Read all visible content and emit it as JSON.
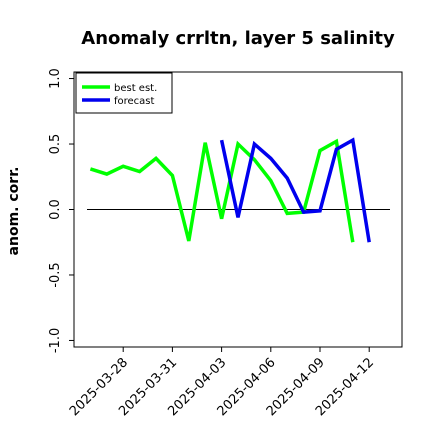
{
  "chart_data": {
    "type": "line",
    "title": "Anomaly crrltn, layer 5 salinity",
    "xlabel": "",
    "ylabel": "anom. corr.",
    "ylim": [
      -1.05,
      1.05
    ],
    "xlim": [
      "2025-03-25",
      "2025-04-14"
    ],
    "yticks": [
      "-1.0",
      "-0.5",
      "0.0",
      "0.5",
      "1.0"
    ],
    "xticks": [
      "2025-03-28",
      "2025-03-31",
      "2025-04-03",
      "2025-04-06",
      "2025-04-09",
      "2025-04-12"
    ],
    "highlight_tick": "2025-04-03",
    "highlight_color": "#228b22",
    "zero_line": true,
    "grid": false,
    "legend_position": "top-left",
    "series": [
      {
        "name": "best est.",
        "color": "#00ff00",
        "x": [
          "2025-03-26",
          "2025-03-27",
          "2025-03-28",
          "2025-03-29",
          "2025-03-30",
          "2025-03-31",
          "2025-04-01",
          "2025-04-02",
          "2025-04-03",
          "2025-04-04",
          "2025-04-05",
          "2025-04-06",
          "2025-04-07",
          "2025-04-08",
          "2025-04-09",
          "2025-04-10",
          "2025-04-11",
          "2025-04-12"
        ],
        "y": [
          0.31,
          0.27,
          0.33,
          0.29,
          0.39,
          0.26,
          -0.24,
          0.51,
          -0.07,
          0.5,
          0.38,
          0.22,
          -0.03,
          -0.02,
          0.45,
          0.52,
          -0.25,
          null
        ]
      },
      {
        "name": "forecast",
        "color": "#0000ee",
        "x": [
          "2025-04-03",
          "2025-04-04",
          "2025-04-05",
          "2025-04-06",
          "2025-04-07",
          "2025-04-08",
          "2025-04-09",
          "2025-04-10",
          "2025-04-11",
          "2025-04-12"
        ],
        "y": [
          0.53,
          -0.06,
          0.5,
          0.39,
          0.24,
          -0.02,
          -0.01,
          0.46,
          0.53,
          -0.25
        ]
      }
    ]
  }
}
